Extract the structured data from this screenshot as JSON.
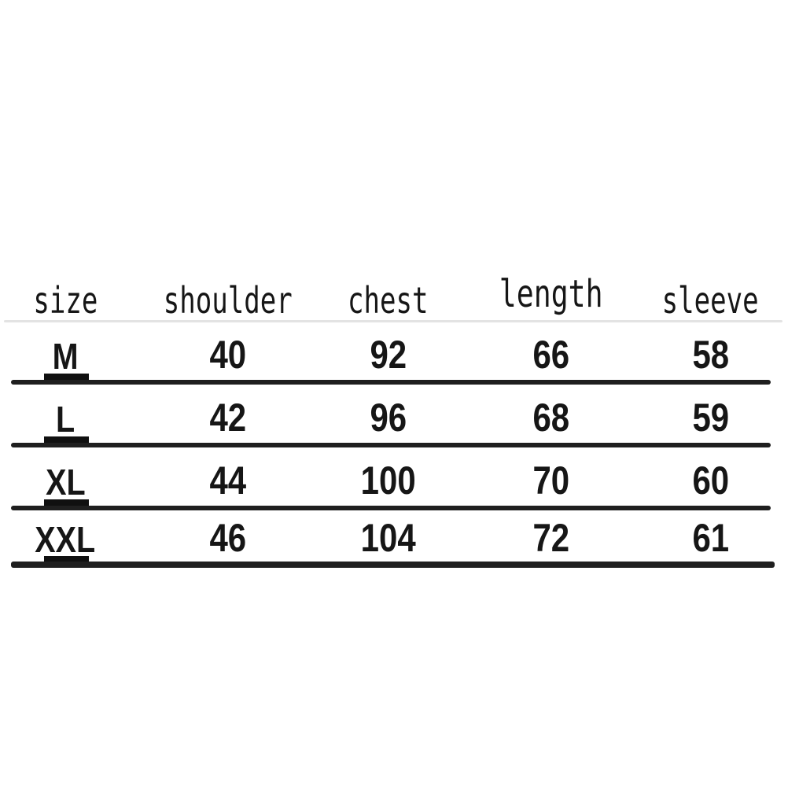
{
  "page": {
    "background": "#ffffff"
  },
  "colors": {
    "text": "#161616",
    "row_rule": "#1f1f1f",
    "size_tab": "#101010",
    "header_rule": "#e3e3e3"
  },
  "table": {
    "headers": [
      "size",
      "shoulder",
      "chest",
      "length",
      "sleeve"
    ],
    "rows": [
      [
        "M",
        "40",
        "92",
        "66",
        "58"
      ],
      [
        "L",
        "42",
        "96",
        "68",
        "59"
      ],
      [
        "XL",
        "44",
        "100",
        "70",
        "60"
      ],
      [
        "XXL",
        "46",
        "104",
        "72",
        "61"
      ]
    ]
  },
  "chart_data": {
    "type": "table",
    "columns": [
      "size",
      "shoulder",
      "chest",
      "length",
      "sleeve"
    ],
    "rows": [
      {
        "size": "M",
        "shoulder": 40,
        "chest": 92,
        "length": 66,
        "sleeve": 58
      },
      {
        "size": "L",
        "shoulder": 42,
        "chest": 96,
        "length": 68,
        "sleeve": 59
      },
      {
        "size": "XL",
        "shoulder": 44,
        "chest": 100,
        "length": 70,
        "sleeve": 60
      },
      {
        "size": "XXL",
        "shoulder": 46,
        "chest": 104,
        "length": 72,
        "sleeve": 61
      }
    ],
    "layout": {
      "gridlines": "horizontal rule under each data row",
      "header_divider": "faint gray line"
    }
  }
}
